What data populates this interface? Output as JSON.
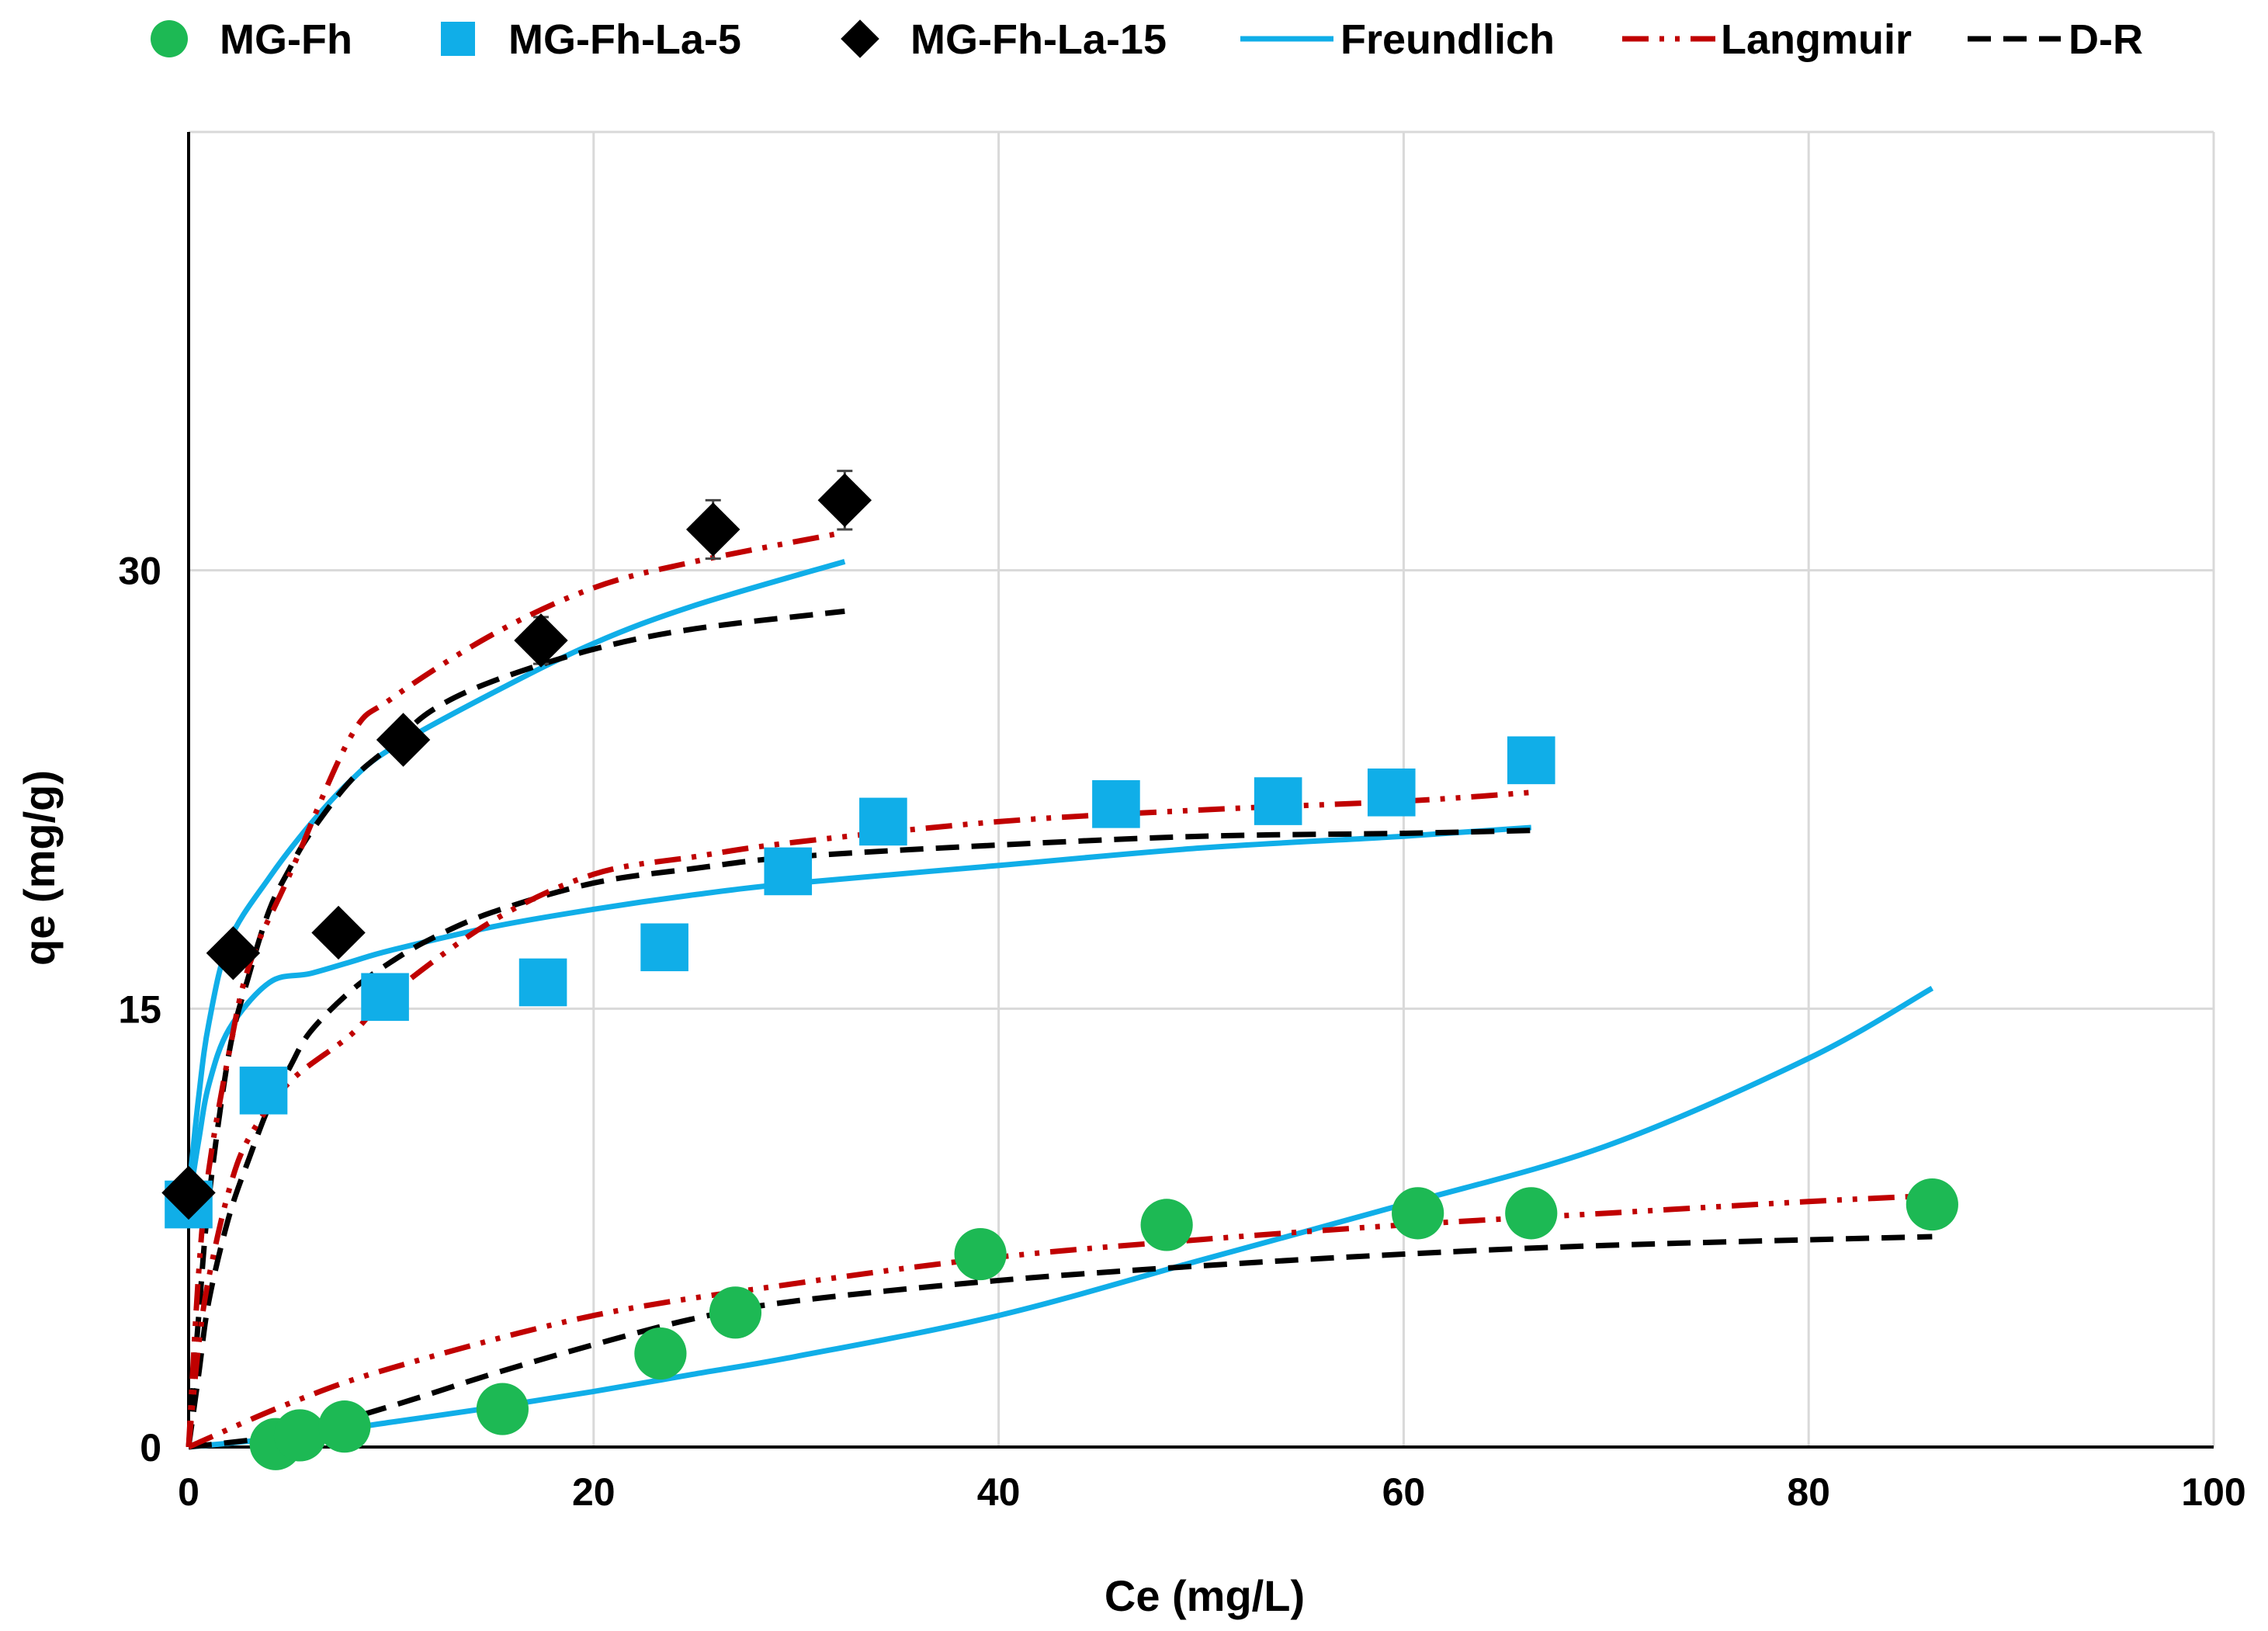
{
  "chart_data": {
    "type": "scatter",
    "xlabel": "Ce (mg/L)",
    "ylabel": "qe (mg/g)",
    "xlim": [
      0,
      100
    ],
    "ylim": [
      0,
      45
    ],
    "xticks": [
      0,
      20,
      40,
      60,
      80,
      100
    ],
    "yticks": [
      0,
      15,
      30
    ],
    "grid": true,
    "legend_position": "top",
    "legend": [
      "MG-Fh",
      "MG-Fh-La-5",
      "MG-Fh-La-15",
      "Freundlich",
      "Langmuir",
      "D-R"
    ],
    "colors": {
      "mgfh": "#1db954",
      "la5": "#10aee8",
      "la15": "#000000",
      "freundlich": "#10aee8",
      "langmuir": "#c00000",
      "dr": "#000000",
      "grid": "#d9d9d9",
      "errorbar": "#444444"
    },
    "series": [
      {
        "name": "MG-Fh",
        "kind": "points",
        "marker": "circle",
        "x": [
          4.3,
          5.5,
          7.7,
          15.5,
          23.3,
          27.0,
          39.1,
          48.3,
          60.7,
          66.3,
          86.1
        ],
        "y": [
          0.1,
          0.4,
          0.7,
          1.3,
          3.2,
          4.6,
          6.6,
          7.6,
          8.0,
          8.0,
          8.3
        ],
        "err": [
          0,
          0,
          0,
          0,
          0,
          0,
          0,
          0.3,
          0.4,
          0.4,
          0.4
        ]
      },
      {
        "name": "MG-Fh-La-5",
        "kind": "points",
        "marker": "square",
        "x": [
          0.0,
          3.7,
          9.7,
          17.5,
          23.5,
          29.6,
          34.3,
          45.8,
          53.8,
          59.4,
          66.3
        ],
        "y": [
          8.3,
          12.2,
          15.4,
          15.9,
          17.1,
          19.7,
          21.4,
          22.0,
          22.1,
          22.4,
          23.5
        ],
        "err": [
          0,
          0,
          0.4,
          0.4,
          0.5,
          0.5,
          0.5,
          0.6,
          0.6,
          0.6,
          0.6
        ]
      },
      {
        "name": "MG-Fh-La-15",
        "kind": "points",
        "marker": "diamond",
        "x": [
          0.0,
          2.2,
          7.4,
          10.6,
          17.4,
          25.9,
          32.4
        ],
        "y": [
          8.7,
          16.9,
          17.6,
          24.2,
          27.6,
          31.4,
          32.4
        ],
        "err": [
          0,
          0,
          0.5,
          0.6,
          0.8,
          1.0,
          1.0
        ]
      },
      {
        "name": "Freundlich",
        "kind": "line",
        "style": "solid",
        "curves": [
          {
            "x": [
              0,
              0.5,
              1,
              2,
              4,
              6,
              8,
              10,
              15,
              20,
              25,
              30,
              40,
              50,
              60,
              66.3
            ],
            "y": [
              8.3,
              10.5,
              12.4,
              14.3,
              15.9,
              16.2,
              16.6,
              17.0,
              17.8,
              18.4,
              18.9,
              19.3,
              19.9,
              20.5,
              20.9,
              21.2
            ]
          },
          {
            "x": [
              0,
              0.5,
              1,
              2,
              4,
              6,
              8,
              10,
              15,
              20,
              25,
              32.4
            ],
            "y": [
              8.7,
              12.0,
              14.5,
              17.3,
              19.5,
              21.3,
              22.8,
              23.9,
              25.8,
              27.5,
              28.8,
              30.3
            ]
          },
          {
            "x": [
              0,
              5,
              10,
              15,
              20,
              25,
              30,
              40,
              50,
              60,
              70,
              80,
              86.1
            ],
            "y": [
              0,
              0.35,
              0.85,
              1.35,
              1.9,
              2.5,
              3.1,
              4.5,
              6.4,
              8.3,
              10.3,
              13.3,
              15.7
            ]
          }
        ]
      },
      {
        "name": "Langmuir",
        "kind": "line",
        "style": "dashdotdot",
        "curves": [
          {
            "x": [
              0,
              0.5,
              1,
              2,
              3,
              5,
              8,
              10,
              15,
              20,
              25,
              30,
              40,
              50,
              60,
              66.3
            ],
            "y": [
              0,
              3.5,
              5.8,
              8.8,
              10.6,
              12.5,
              14.1,
              15.5,
              18.0,
              19.6,
              20.2,
              20.7,
              21.4,
              21.8,
              22.1,
              22.4
            ]
          },
          {
            "x": [
              0,
              0.5,
              1,
              2,
              3,
              5,
              8,
              10,
              15,
              20,
              25,
              32.4
            ],
            "y": [
              0,
              6.0,
              9.5,
              13.5,
              16.5,
              19.6,
              24.3,
              25.6,
              27.8,
              29.4,
              30.3,
              31.3
            ]
          },
          {
            "x": [
              0,
              5,
              10,
              20,
              30,
              40,
              50,
              60,
              70,
              80,
              86.1
            ],
            "y": [
              0,
              1.5,
              2.7,
              4.5,
              5.6,
              6.5,
              7.1,
              7.6,
              8.0,
              8.4,
              8.6
            ]
          }
        ]
      },
      {
        "name": "D-R",
        "kind": "line",
        "style": "dashed",
        "curves": [
          {
            "x": [
              0,
              0.5,
              1,
              2,
              3,
              4,
              5,
              6,
              8,
              10,
              12,
              15,
              20,
              25,
              30,
              40,
              50,
              60,
              66.3
            ],
            "y": [
              0,
              2.5,
              5.0,
              7.9,
              9.9,
              11.7,
              13.0,
              14.2,
              15.6,
              16.6,
              17.4,
              18.3,
              19.3,
              19.8,
              20.2,
              20.6,
              20.9,
              21.0,
              21.1
            ]
          },
          {
            "x": [
              0,
              0.5,
              1,
              2,
              3,
              4,
              5,
              6,
              8,
              10,
              12,
              15,
              20,
              25,
              32.4
            ],
            "y": [
              0,
              4.5,
              8.5,
              13.5,
              16.2,
              18.4,
              19.8,
              21.0,
              22.8,
              24.0,
              25.2,
              26.2,
              27.3,
              28.0,
              28.6
            ]
          },
          {
            "x": [
              0,
              5,
              10,
              15,
              20,
              25,
              30,
              40,
              50,
              60,
              70,
              86.1
            ],
            "y": [
              0,
              0.45,
              1.4,
              2.5,
              3.5,
              4.4,
              5.0,
              5.7,
              6.2,
              6.6,
              6.9,
              7.2
            ]
          }
        ]
      }
    ]
  }
}
